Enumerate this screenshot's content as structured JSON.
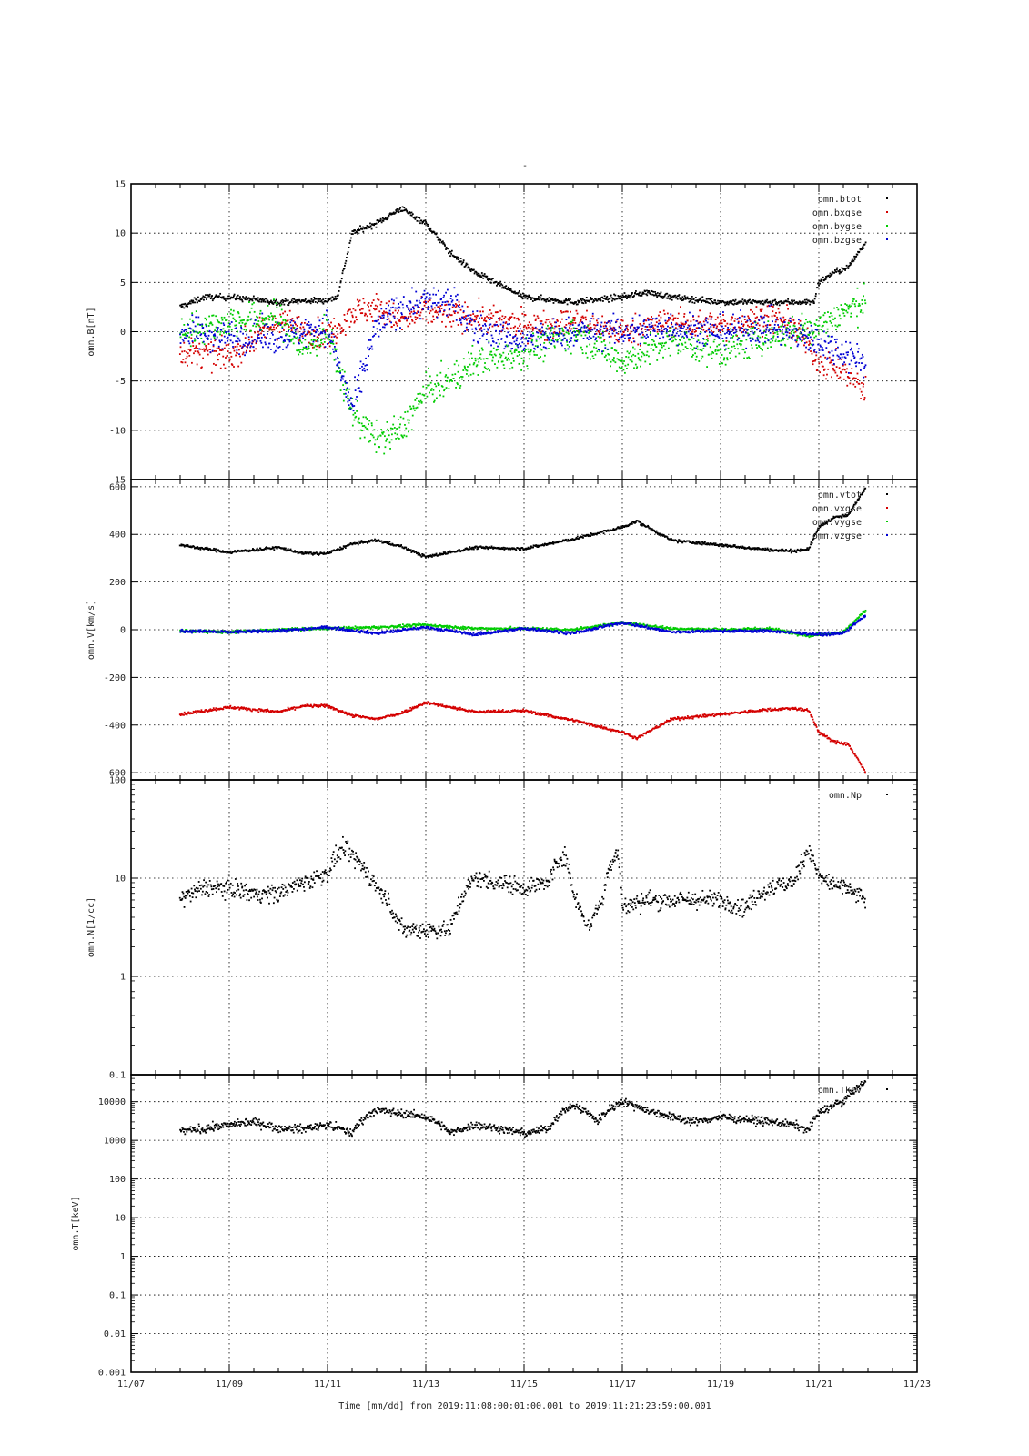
{
  "page": {
    "title": "-",
    "x_title": "Time [mm/dd]  from 2019:11:08:00:01:00.001  to  2019:11:21:23:59:00.001"
  },
  "colors": {
    "black": "#000000",
    "red": "#d40000",
    "green": "#00cc00",
    "blue": "#0000d4",
    "grid": "#000000"
  },
  "chart_data": [
    {
      "type": "scatter",
      "id": "panel_b",
      "ylabel": "omn.B[nT]",
      "y_scale": "linear",
      "ylim": [
        -15,
        15
      ],
      "yticks": [
        -15,
        -10,
        -5,
        0,
        5,
        10,
        15
      ],
      "ytick_labels": [
        "-15",
        "-10",
        "-5",
        "0",
        "5",
        "10",
        "15"
      ],
      "xlim": [
        0,
        16
      ],
      "xticks": [
        0,
        2,
        4,
        6,
        8,
        10,
        12,
        14,
        16
      ],
      "xtick_labels": [
        "11/07",
        "11/09",
        "11/11",
        "11/13",
        "11/15",
        "11/17",
        "11/19",
        "11/21",
        "11/23"
      ],
      "x_unit": "days since 11/07",
      "grid": true,
      "legend": "top-right",
      "series": [
        {
          "name": "omn.btot",
          "color": "#000000",
          "noise": 0.3,
          "x": [
            1.0,
            1.5,
            2.0,
            3.0,
            4.0,
            4.2,
            4.5,
            5.0,
            5.5,
            6.0,
            6.5,
            7.0,
            8.0,
            9.0,
            10.0,
            10.5,
            11.0,
            12.0,
            13.0,
            13.5,
            13.9,
            14.0,
            14.3,
            14.6,
            14.8,
            14.95
          ],
          "y": [
            2.5,
            3.5,
            3.5,
            3.0,
            3.2,
            3.5,
            10.0,
            11.0,
            12.5,
            11.0,
            8.0,
            6.0,
            3.5,
            3.0,
            3.5,
            4.0,
            3.5,
            3.0,
            3.0,
            3.0,
            3.0,
            5.0,
            6.0,
            6.5,
            8.0,
            9.0
          ]
        },
        {
          "name": "omn.bxgse",
          "color": "#d40000",
          "noise": 1.4,
          "x": [
            1.0,
            2.0,
            3.0,
            4.0,
            4.5,
            5.0,
            5.5,
            6.0,
            7.0,
            8.0,
            9.0,
            10.0,
            11.0,
            12.0,
            13.0,
            13.5,
            14.0,
            14.5,
            14.95
          ],
          "y": [
            -2.0,
            -2.5,
            1.0,
            -0.5,
            2.0,
            2.5,
            1.0,
            2.0,
            1.5,
            0.5,
            1.0,
            0.0,
            1.0,
            0.5,
            1.5,
            0.5,
            -3.0,
            -4.0,
            -6.0
          ]
        },
        {
          "name": "omn.bygse",
          "color": "#00cc00",
          "noise": 1.6,
          "x": [
            1.0,
            2.0,
            3.0,
            3.5,
            4.0,
            4.5,
            5.0,
            5.5,
            6.0,
            6.5,
            7.0,
            8.0,
            9.0,
            10.0,
            11.0,
            12.0,
            13.0,
            14.0,
            14.5,
            14.95
          ],
          "y": [
            0.0,
            1.0,
            1.5,
            -2.0,
            0.0,
            -8.0,
            -11.0,
            -10.0,
            -6.0,
            -5.0,
            -3.0,
            -2.0,
            0.0,
            -3.0,
            -1.0,
            -2.0,
            -0.5,
            0.5,
            2.0,
            3.0
          ]
        },
        {
          "name": "omn.bzgse",
          "color": "#0000d4",
          "noise": 1.6,
          "x": [
            1.0,
            2.0,
            3.0,
            4.0,
            4.5,
            5.0,
            5.5,
            6.0,
            6.5,
            7.0,
            8.0,
            9.0,
            10.0,
            11.0,
            12.0,
            13.0,
            14.0,
            14.5,
            14.95
          ],
          "y": [
            0.0,
            -0.5,
            -0.5,
            0.5,
            -8.0,
            0.5,
            2.5,
            3.0,
            3.0,
            0.5,
            -1.0,
            0.0,
            0.0,
            0.5,
            0.0,
            0.5,
            -1.0,
            -2.0,
            -3.0
          ]
        }
      ]
    },
    {
      "type": "scatter",
      "id": "panel_v",
      "ylabel": "omn.V[km/s]",
      "y_scale": "linear",
      "ylim": [
        -630,
        630
      ],
      "yticks": [
        -600,
        -400,
        -200,
        0,
        200,
        400,
        600
      ],
      "ytick_labels": [
        "-600",
        "-400",
        "-200",
        "0",
        "200",
        "400",
        "600"
      ],
      "xlim": [
        0,
        16
      ],
      "xticks": [
        0,
        2,
        4,
        6,
        8,
        10,
        12,
        14,
        16
      ],
      "grid": true,
      "legend": "top-right",
      "series": [
        {
          "name": "omn.vtot",
          "color": "#000000",
          "noise": 6,
          "x": [
            1.0,
            2.0,
            3.0,
            3.5,
            4.0,
            4.5,
            5.0,
            5.5,
            6.0,
            7.0,
            8.0,
            9.0,
            10.0,
            10.3,
            11.0,
            12.0,
            13.0,
            13.5,
            13.8,
            14.0,
            14.3,
            14.6,
            14.9,
            14.95
          ],
          "y": [
            355,
            325,
            345,
            320,
            320,
            360,
            375,
            350,
            305,
            345,
            340,
            380,
            430,
            455,
            375,
            355,
            335,
            330,
            340,
            430,
            470,
            480,
            580,
            600
          ]
        },
        {
          "name": "omn.vxgse",
          "color": "#d40000",
          "noise": 6,
          "x": [
            1.0,
            2.0,
            3.0,
            3.5,
            4.0,
            4.5,
            5.0,
            5.5,
            6.0,
            7.0,
            8.0,
            9.0,
            10.0,
            10.3,
            11.0,
            12.0,
            13.0,
            13.5,
            13.8,
            14.0,
            14.3,
            14.6,
            14.9,
            14.95
          ],
          "y": [
            -355,
            -325,
            -345,
            -320,
            -320,
            -360,
            -375,
            -350,
            -305,
            -345,
            -340,
            -380,
            -430,
            -455,
            -375,
            -355,
            -335,
            -330,
            -340,
            -430,
            -470,
            -480,
            -580,
            -600
          ]
        },
        {
          "name": "omn.vygse",
          "color": "#00cc00",
          "noise": 6,
          "x": [
            1.0,
            2.0,
            3.0,
            4.0,
            5.0,
            6.0,
            7.0,
            8.0,
            9.0,
            10.0,
            11.0,
            12.0,
            13.0,
            13.8,
            14.5,
            14.95
          ],
          "y": [
            -5,
            -10,
            0,
            5,
            10,
            20,
            5,
            5,
            0,
            30,
            5,
            0,
            5,
            -25,
            -10,
            80
          ]
        },
        {
          "name": "omn.vzgse",
          "color": "#0000d4",
          "noise": 6,
          "x": [
            1.0,
            2.0,
            3.0,
            4.0,
            5.0,
            6.0,
            7.0,
            8.0,
            9.0,
            10.0,
            11.0,
            12.0,
            13.0,
            14.0,
            14.5,
            14.95
          ],
          "y": [
            -5,
            -10,
            -5,
            10,
            -15,
            10,
            -20,
            5,
            -15,
            30,
            -10,
            -5,
            -5,
            -20,
            -15,
            60
          ]
        }
      ]
    },
    {
      "type": "scatter",
      "id": "panel_n",
      "ylabel": "omn.N[1/cc]",
      "y_scale": "log",
      "ylim": [
        0.1,
        100
      ],
      "yticks": [
        0.1,
        1,
        10,
        100
      ],
      "ytick_labels": [
        "0.1",
        "1",
        "10",
        "100"
      ],
      "xlim": [
        0,
        16
      ],
      "xticks": [
        0,
        2,
        4,
        6,
        8,
        10,
        12,
        14,
        16
      ],
      "grid": true,
      "legend": "top-right",
      "series": [
        {
          "name": "omn.Np",
          "color": "#000000",
          "noise": 0.09,
          "x": [
            1.0,
            1.5,
            2.0,
            2.5,
            3.0,
            3.5,
            4.0,
            4.3,
            4.6,
            5.0,
            5.5,
            6.0,
            6.5,
            7.0,
            7.5,
            8.0,
            8.5,
            8.8,
            9.0,
            9.3,
            9.6,
            9.9,
            10.0,
            10.5,
            11.0,
            12.0,
            12.5,
            13.0,
            13.5,
            13.8,
            14.0,
            14.5,
            14.95
          ],
          "y": [
            6,
            8,
            8,
            7,
            7,
            9,
            11,
            20,
            15,
            8,
            3,
            3,
            3,
            10,
            9,
            8,
            9,
            18,
            7,
            3,
            6,
            20,
            5,
            6,
            6,
            6,
            5,
            8,
            9,
            20,
            10,
            8,
            6
          ]
        }
      ]
    },
    {
      "type": "scatter",
      "id": "panel_t",
      "ylabel": "omn.T[keV]",
      "y_scale": "log",
      "ylim": [
        0.001,
        50000
      ],
      "yticks": [
        0.001,
        0.01,
        0.1,
        1,
        10,
        100,
        1000,
        10000
      ],
      "ytick_labels": [
        "0.001",
        "0.01",
        "0.1",
        "1",
        "10",
        "100",
        "1000",
        "10000"
      ],
      "xlim": [
        0,
        16
      ],
      "xticks": [
        0,
        2,
        4,
        6,
        8,
        10,
        12,
        14,
        16
      ],
      "xtick_labels": [
        "11/07",
        "11/09",
        "11/11",
        "11/13",
        "11/15",
        "11/17",
        "11/19",
        "11/21",
        "11/23"
      ],
      "grid": true,
      "legend": "top-right",
      "series": [
        {
          "name": "omn.Tkev",
          "color": "#000000",
          "noise": 0.1,
          "x": [
            1.0,
            1.5,
            2.0,
            2.5,
            3.0,
            3.5,
            4.0,
            4.5,
            5.0,
            5.5,
            6.0,
            6.3,
            6.5,
            7.0,
            7.5,
            8.0,
            8.5,
            9.0,
            9.3,
            9.5,
            10.0,
            10.5,
            11.0,
            11.5,
            12.0,
            12.5,
            13.0,
            13.5,
            13.8,
            14.0,
            14.5,
            14.95
          ],
          "y": [
            1700,
            2000,
            2500,
            3000,
            2000,
            2000,
            2500,
            1500,
            6000,
            5000,
            4000,
            2500,
            1500,
            2500,
            2000,
            1500,
            2000,
            8000,
            5000,
            3000,
            10000,
            6000,
            4000,
            3000,
            4000,
            3500,
            3000,
            2500,
            1800,
            5000,
            10000,
            30000
          ]
        }
      ]
    }
  ]
}
